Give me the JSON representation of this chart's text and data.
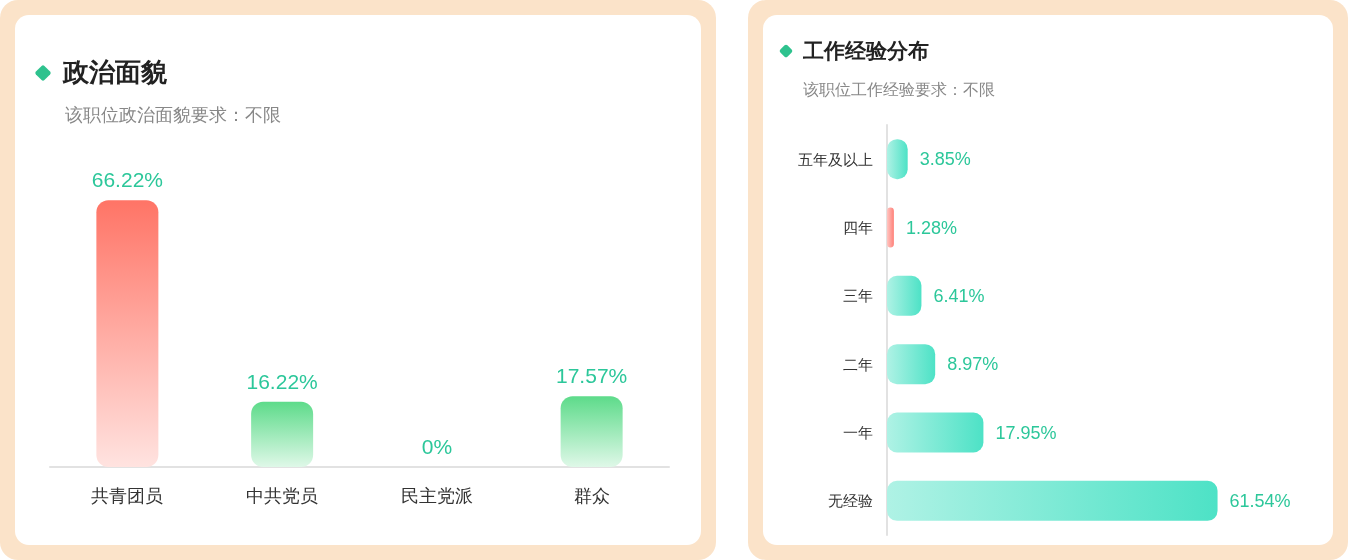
{
  "chart_data": [
    {
      "type": "bar",
      "title": "政治面貌",
      "subtitle": "该职位政治面貌要求：不限",
      "categories": [
        "共青团员",
        "中共党员",
        "民主党派",
        "群众"
      ],
      "values": [
        66.22,
        16.22,
        0,
        17.57
      ],
      "colors": [
        "#ff7466",
        "#5ddb8a",
        "#5ddb8a",
        "#5ddb8a"
      ],
      "value_labels": [
        "66.22%",
        "16.22%",
        "0%",
        "17.57%"
      ]
    },
    {
      "type": "bar",
      "orientation": "horizontal",
      "title": "工作经验分布",
      "subtitle": "该职位工作经验要求：不限",
      "categories": [
        "五年及以上",
        "四年",
        "三年",
        "二年",
        "一年",
        "无经验"
      ],
      "values": [
        3.85,
        1.28,
        6.41,
        8.97,
        17.95,
        61.54
      ],
      "colors": [
        "#4de2c6",
        "#ff8078",
        "#4de2c6",
        "#4de2c6",
        "#4de2c6",
        "#4de2c6"
      ],
      "value_labels": [
        "3.85%",
        "1.28%",
        "6.41%",
        "8.97%",
        "17.95%",
        "61.54%"
      ]
    }
  ]
}
